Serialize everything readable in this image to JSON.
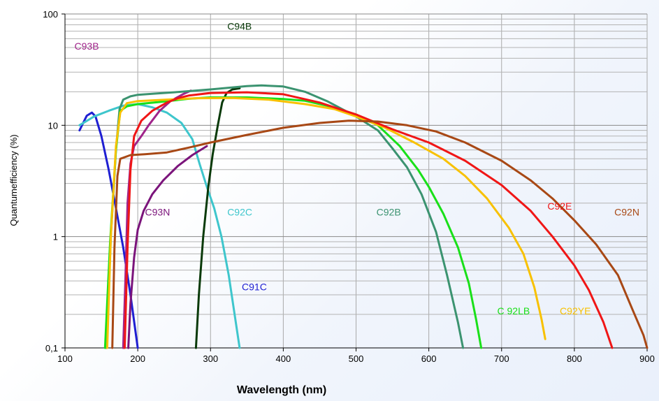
{
  "chart_data": {
    "type": "line",
    "title": "",
    "xlabel": "Wavelength (nm)",
    "ylabel": "Quantumefficiency (%)",
    "xlim": [
      100,
      900
    ],
    "ylim": [
      0.1,
      100
    ],
    "y_scale": "log",
    "grid": true,
    "x_ticks": [
      {
        "value": 100,
        "label": "100"
      },
      {
        "value": 200,
        "label": "200"
      },
      {
        "value": 300,
        "label": "300"
      },
      {
        "value": 400,
        "label": "400"
      },
      {
        "value": 500,
        "label": "500"
      },
      {
        "value": 600,
        "label": "600"
      },
      {
        "value": 700,
        "label": "700"
      },
      {
        "value": 800,
        "label": "800"
      },
      {
        "value": 900,
        "label": "900"
      }
    ],
    "y_ticks": [
      {
        "value": 0.1,
        "label": "0,1"
      },
      {
        "value": 1,
        "label": "1"
      },
      {
        "value": 10,
        "label": "10"
      },
      {
        "value": 100,
        "label": "100"
      }
    ],
    "series": [
      {
        "name": "C91C",
        "color": "#1f1fd2",
        "label_pos": [
          343,
          0.33
        ],
        "points": [
          [
            120,
            9.0
          ],
          [
            125,
            10.5
          ],
          [
            130,
            12.2
          ],
          [
            137,
            13.0
          ],
          [
            142,
            12.0
          ],
          [
            150,
            8.0
          ],
          [
            160,
            4.0
          ],
          [
            170,
            1.8
          ],
          [
            180,
            0.8
          ],
          [
            190,
            0.3
          ],
          [
            200,
            0.1
          ]
        ]
      },
      {
        "name": "C92C",
        "color": "#3ec6cc",
        "label_pos": [
          323,
          1.55
        ],
        "points": [
          [
            120,
            10.0
          ],
          [
            140,
            12.0
          ],
          [
            160,
            13.5
          ],
          [
            180,
            15.0
          ],
          [
            200,
            15.5
          ],
          [
            220,
            14.5
          ],
          [
            240,
            13.0
          ],
          [
            260,
            10.5
          ],
          [
            275,
            7.5
          ],
          [
            285,
            4.5
          ],
          [
            295,
            2.8
          ],
          [
            305,
            1.8
          ],
          [
            315,
            1.0
          ],
          [
            325,
            0.45
          ],
          [
            340,
            0.1
          ]
        ]
      },
      {
        "name": "C93B",
        "color": "#a0248a",
        "label_pos": [
          113,
          48
        ],
        "points": [
          [
            180,
            0.1
          ],
          [
            183,
            0.4
          ],
          [
            186,
            2.0
          ],
          [
            190,
            4.5
          ],
          [
            195,
            6.5
          ],
          [
            205,
            8.0
          ],
          [
            215,
            10.0
          ],
          [
            230,
            13.5
          ],
          [
            245,
            16.5
          ],
          [
            262,
            19.0
          ],
          [
            273,
            20.5
          ]
        ]
      },
      {
        "name": "C93N",
        "color": "#7b147b",
        "label_pos": [
          210,
          1.55
        ],
        "points": [
          [
            187,
            0.1
          ],
          [
            190,
            0.25
          ],
          [
            195,
            0.65
          ],
          [
            200,
            1.15
          ],
          [
            208,
            1.7
          ],
          [
            220,
            2.4
          ],
          [
            235,
            3.2
          ],
          [
            255,
            4.3
          ],
          [
            275,
            5.4
          ],
          [
            295,
            6.5
          ]
        ]
      },
      {
        "name": "C94B",
        "color": "#0a3a0a",
        "label_pos": [
          323,
          72
        ],
        "points": [
          [
            280,
            0.1
          ],
          [
            284,
            0.3
          ],
          [
            290,
            1.0
          ],
          [
            297,
            2.8
          ],
          [
            303,
            5.5
          ],
          [
            310,
            10.0
          ],
          [
            316,
            16.0
          ],
          [
            322,
            19.5
          ],
          [
            330,
            21.0
          ],
          [
            340,
            21.5
          ]
        ]
      },
      {
        "name": "C92B",
        "color": "#3b9370",
        "label_pos": [
          528,
          1.55
        ],
        "points": [
          [
            157,
            0.1
          ],
          [
            163,
            1.0
          ],
          [
            170,
            6.0
          ],
          [
            175,
            14.0
          ],
          [
            180,
            17.0
          ],
          [
            190,
            18.2
          ],
          [
            200,
            18.8
          ],
          [
            220,
            19.2
          ],
          [
            250,
            19.8
          ],
          [
            300,
            21.0
          ],
          [
            350,
            22.5
          ],
          [
            370,
            22.8
          ],
          [
            400,
            22.3
          ],
          [
            430,
            20.0
          ],
          [
            460,
            16.5
          ],
          [
            500,
            12.0
          ],
          [
            530,
            9.0
          ],
          [
            550,
            6.2
          ],
          [
            570,
            4.2
          ],
          [
            590,
            2.4
          ],
          [
            610,
            1.1
          ],
          [
            625,
            0.45
          ],
          [
            640,
            0.17
          ],
          [
            647,
            0.1
          ]
        ]
      },
      {
        "name": "C 92LB",
        "color": "#19e019",
        "label_pos": [
          694,
          0.2
        ],
        "points": [
          [
            155,
            0.1
          ],
          [
            162,
            0.9
          ],
          [
            170,
            6.0
          ],
          [
            176,
            13.5
          ],
          [
            185,
            14.8
          ],
          [
            200,
            15.5
          ],
          [
            230,
            16.2
          ],
          [
            270,
            17.3
          ],
          [
            300,
            17.8
          ],
          [
            350,
            17.8
          ],
          [
            400,
            17.2
          ],
          [
            430,
            16.6
          ],
          [
            460,
            15.0
          ],
          [
            500,
            12.5
          ],
          [
            530,
            10.0
          ],
          [
            560,
            6.5
          ],
          [
            585,
            4.0
          ],
          [
            600,
            2.8
          ],
          [
            620,
            1.6
          ],
          [
            640,
            0.8
          ],
          [
            655,
            0.38
          ],
          [
            665,
            0.18
          ],
          [
            672,
            0.1
          ]
        ]
      },
      {
        "name": "C92YE",
        "color": "#f8c100",
        "label_pos": [
          780,
          0.2
        ],
        "points": [
          [
            158,
            0.1
          ],
          [
            163,
            1.0
          ],
          [
            170,
            6.5
          ],
          [
            176,
            13.0
          ],
          [
            185,
            15.8
          ],
          [
            200,
            16.5
          ],
          [
            240,
            17.0
          ],
          [
            280,
            17.5
          ],
          [
            330,
            17.6
          ],
          [
            380,
            17.0
          ],
          [
            430,
            15.5
          ],
          [
            470,
            14.0
          ],
          [
            500,
            12.0
          ],
          [
            540,
            9.5
          ],
          [
            580,
            7.0
          ],
          [
            620,
            5.0
          ],
          [
            650,
            3.5
          ],
          [
            680,
            2.2
          ],
          [
            710,
            1.2
          ],
          [
            730,
            0.7
          ],
          [
            745,
            0.35
          ],
          [
            755,
            0.18
          ],
          [
            760,
            0.12
          ]
        ]
      },
      {
        "name": "C92E",
        "color": "#f01616",
        "label_pos": [
          763,
          1.75
        ],
        "points": [
          [
            182,
            0.1
          ],
          [
            186,
            0.8
          ],
          [
            190,
            4.0
          ],
          [
            195,
            8.0
          ],
          [
            205,
            11.0
          ],
          [
            220,
            13.5
          ],
          [
            240,
            16.0
          ],
          [
            255,
            17.5
          ],
          [
            270,
            18.5
          ],
          [
            300,
            19.5
          ],
          [
            350,
            19.8
          ],
          [
            400,
            19.0
          ],
          [
            450,
            16.0
          ],
          [
            500,
            12.5
          ],
          [
            550,
            9.2
          ],
          [
            600,
            7.0
          ],
          [
            650,
            4.8
          ],
          [
            700,
            2.9
          ],
          [
            740,
            1.7
          ],
          [
            770,
            1.0
          ],
          [
            800,
            0.55
          ],
          [
            820,
            0.33
          ],
          [
            840,
            0.17
          ],
          [
            852,
            0.1
          ]
        ]
      },
      {
        "name": "C92N",
        "color": "#a84815",
        "label_pos": [
          855,
          1.55
        ],
        "points": [
          [
            165,
            0.1
          ],
          [
            168,
            0.8
          ],
          [
            172,
            3.5
          ],
          [
            176,
            5.0
          ],
          [
            190,
            5.4
          ],
          [
            210,
            5.5
          ],
          [
            240,
            5.7
          ],
          [
            270,
            6.3
          ],
          [
            300,
            7.0
          ],
          [
            350,
            8.2
          ],
          [
            400,
            9.5
          ],
          [
            450,
            10.5
          ],
          [
            490,
            11.0
          ],
          [
            530,
            10.8
          ],
          [
            570,
            10.0
          ],
          [
            610,
            8.8
          ],
          [
            650,
            7.0
          ],
          [
            700,
            4.8
          ],
          [
            740,
            3.2
          ],
          [
            770,
            2.2
          ],
          [
            800,
            1.4
          ],
          [
            830,
            0.85
          ],
          [
            860,
            0.45
          ],
          [
            880,
            0.22
          ],
          [
            895,
            0.13
          ],
          [
            900,
            0.1
          ]
        ]
      }
    ]
  }
}
